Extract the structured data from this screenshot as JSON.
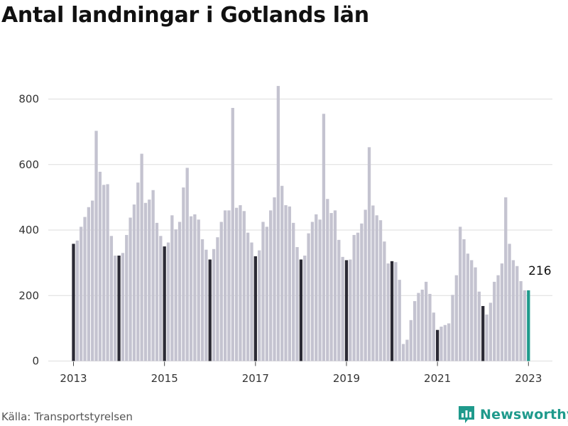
{
  "header": {
    "title": "Antal landningar i Gotlands län"
  },
  "footer": {
    "source": "Källa: Transportstyrelsen",
    "brand": "Newsworthy"
  },
  "colors": {
    "bar": "#c4c3d0",
    "january": "#2b2a35",
    "latest": "#1f9a8c",
    "grid": "#dedede",
    "brand": "#1f9a8c"
  },
  "icons": {
    "brand_logo": "newsworthy-logo-icon"
  },
  "chart_data": {
    "type": "bar",
    "title": "Antal landningar i Gotlands län",
    "xlabel": "",
    "ylabel": "",
    "ylim": [
      0,
      850
    ],
    "y_ticks": [
      0,
      200,
      400,
      600,
      800
    ],
    "x_tick_labels": [
      "2013",
      "2015",
      "2017",
      "2019",
      "2021",
      "2023"
    ],
    "grid": true,
    "start": "2013-01",
    "frequency": "monthly",
    "values": [
      358,
      368,
      410,
      440,
      470,
      490,
      703,
      578,
      538,
      540,
      382,
      322,
      322,
      330,
      385,
      438,
      478,
      545,
      633,
      483,
      493,
      522,
      422,
      382,
      350,
      362,
      445,
      402,
      425,
      530,
      590,
      442,
      448,
      432,
      372,
      340,
      310,
      342,
      378,
      425,
      460,
      460,
      773,
      468,
      476,
      458,
      392,
      362,
      320,
      338,
      425,
      410,
      460,
      500,
      840,
      535,
      476,
      472,
      422,
      348,
      310,
      322,
      390,
      425,
      448,
      432,
      755,
      495,
      452,
      460,
      370,
      318,
      308,
      310,
      385,
      392,
      420,
      462,
      653,
      475,
      445,
      430,
      365,
      298,
      305,
      302,
      248,
      52,
      65,
      125,
      183,
      208,
      218,
      242,
      205,
      148,
      95,
      105,
      110,
      115,
      202,
      262,
      410,
      372,
      328,
      308,
      286,
      212,
      168,
      142,
      178,
      242,
      262,
      298,
      500,
      358,
      308,
      290,
      244,
      216,
      216
    ],
    "highlight": {
      "label": "216",
      "value": 216,
      "date": "2023-01"
    }
  }
}
